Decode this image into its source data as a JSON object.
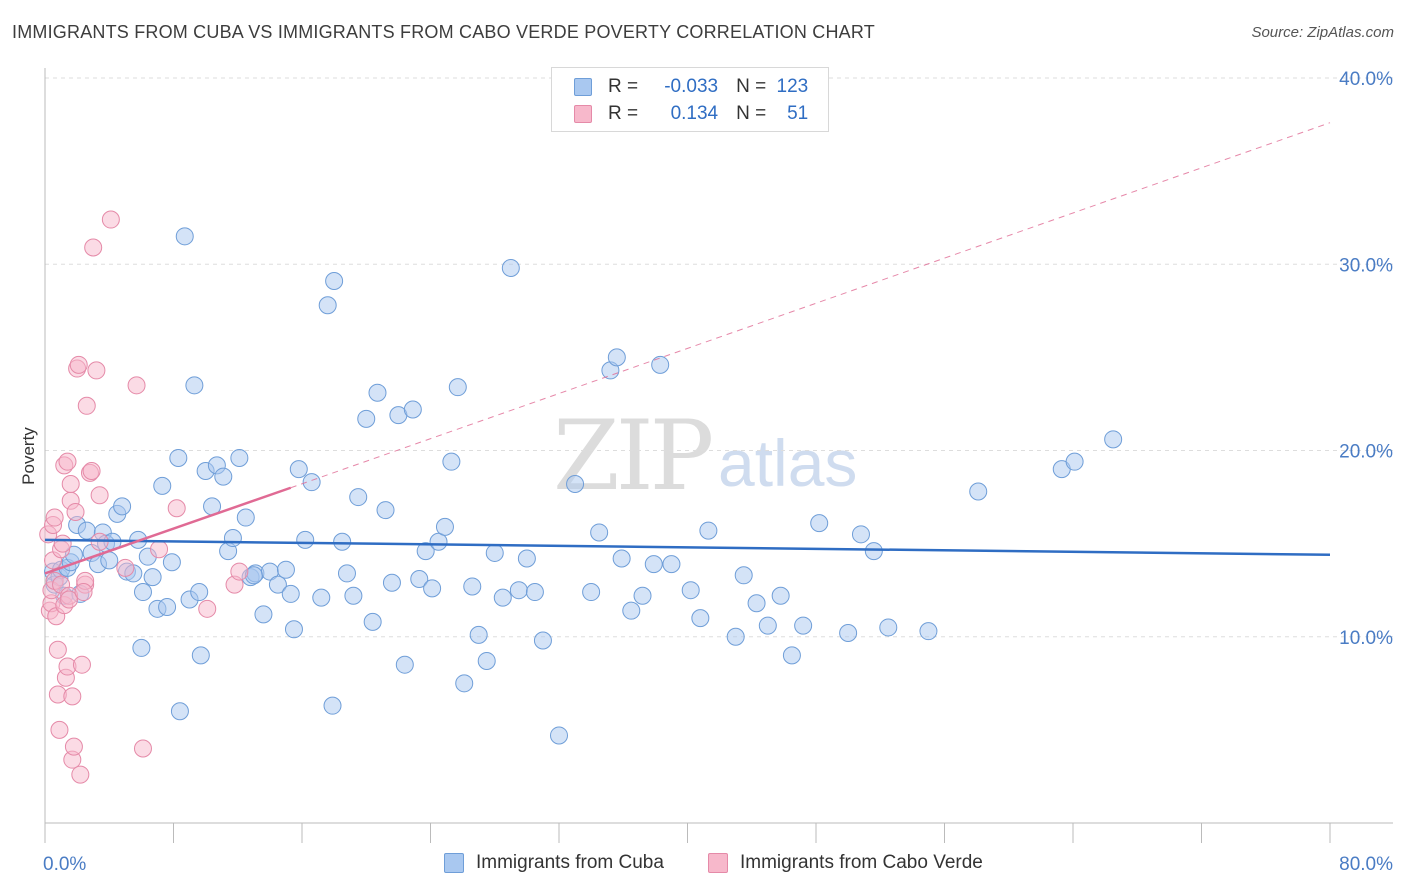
{
  "header": {
    "title": "IMMIGRANTS FROM CUBA VS IMMIGRANTS FROM CABO VERDE POVERTY CORRELATION CHART",
    "source": "Source: ZipAtlas.com"
  },
  "watermark": {
    "zip": "ZIP",
    "atlas": "atlas"
  },
  "legend": {
    "rows": [
      {
        "r_label": "R =",
        "r_value": "-0.033",
        "n_label": "N =",
        "n_value": "123",
        "color": "#a9c8f0"
      },
      {
        "r_label": "R =",
        "r_value": "0.134",
        "n_label": "N =",
        "n_value": "51",
        "color": "#f7b8cb"
      }
    ]
  },
  "bottom_legend": {
    "series1": "Immigrants from Cuba",
    "series2": "Immigrants from Cabo Verde"
  },
  "colors": {
    "cuba_fill": "#a9c8f0",
    "cuba_stroke": "#6f9ed8",
    "cuba_line": "#2f6dc3",
    "cabo_fill": "#f7b8cb",
    "cabo_stroke": "#e58aa8",
    "cabo_line": "#e06a94"
  },
  "chart_data": {
    "type": "scatter",
    "title": "IMMIGRANTS FROM CUBA VS IMMIGRANTS FROM CABO VERDE POVERTY CORRELATION CHART",
    "xlabel": "",
    "ylabel": "Poverty",
    "xlim": [
      0,
      80
    ],
    "ylim": [
      0,
      40
    ],
    "x_tick_labels": [
      "0.0%",
      "80.0%"
    ],
    "y_ticks": [
      10,
      20,
      30,
      40
    ],
    "y_tick_labels": [
      "10.0%",
      "20.0%",
      "30.0%",
      "40.0%"
    ],
    "series": [
      {
        "name": "Immigrants from Cuba",
        "trend": {
          "x0": 0,
          "y0": 15.2,
          "x1": 80,
          "y1": 14.4
        },
        "points": [
          [
            0.5,
            13.5
          ],
          [
            0.6,
            12.8
          ],
          [
            0.9,
            13.2
          ],
          [
            1.0,
            13.6
          ],
          [
            1.2,
            12.2
          ],
          [
            1.4,
            13.7
          ],
          [
            1.6,
            14.0
          ],
          [
            1.8,
            14.4
          ],
          [
            2.0,
            16.0
          ],
          [
            2.2,
            12.3
          ],
          [
            2.6,
            15.7
          ],
          [
            2.9,
            14.5
          ],
          [
            3.3,
            13.9
          ],
          [
            3.6,
            15.6
          ],
          [
            3.8,
            15.0
          ],
          [
            4.0,
            14.1
          ],
          [
            4.5,
            16.6
          ],
          [
            4.8,
            17.0
          ],
          [
            5.1,
            13.5
          ],
          [
            5.5,
            13.4
          ],
          [
            5.8,
            15.2
          ],
          [
            6.1,
            12.4
          ],
          [
            6.4,
            14.3
          ],
          [
            6.7,
            13.2
          ],
          [
            7.0,
            11.5
          ],
          [
            7.3,
            18.1
          ],
          [
            7.6,
            11.6
          ],
          [
            7.9,
            14.0
          ],
          [
            8.3,
            19.6
          ],
          [
            8.7,
            31.5
          ],
          [
            9.0,
            12.0
          ],
          [
            9.3,
            23.5
          ],
          [
            9.6,
            12.4
          ],
          [
            10.0,
            18.9
          ],
          [
            10.4,
            17.0
          ],
          [
            10.7,
            19.2
          ],
          [
            11.1,
            18.6
          ],
          [
            11.4,
            14.6
          ],
          [
            11.7,
            15.3
          ],
          [
            12.1,
            19.6
          ],
          [
            12.5,
            16.4
          ],
          [
            12.8,
            13.2
          ],
          [
            13.1,
            13.4
          ],
          [
            13.6,
            11.2
          ],
          [
            14.0,
            13.5
          ],
          [
            14.5,
            12.8
          ],
          [
            15.0,
            13.6
          ],
          [
            15.3,
            12.3
          ],
          [
            15.8,
            19.0
          ],
          [
            16.2,
            15.2
          ],
          [
            16.6,
            18.3
          ],
          [
            17.2,
            12.1
          ],
          [
            17.6,
            27.8
          ],
          [
            18.0,
            29.1
          ],
          [
            18.5,
            15.1
          ],
          [
            18.8,
            13.4
          ],
          [
            19.2,
            12.2
          ],
          [
            19.5,
            17.5
          ],
          [
            20.0,
            21.7
          ],
          [
            20.4,
            10.8
          ],
          [
            20.7,
            23.1
          ],
          [
            21.2,
            16.8
          ],
          [
            21.6,
            12.9
          ],
          [
            22.0,
            21.9
          ],
          [
            22.4,
            8.5
          ],
          [
            22.9,
            22.2
          ],
          [
            23.3,
            13.1
          ],
          [
            23.7,
            14.6
          ],
          [
            24.1,
            12.6
          ],
          [
            24.5,
            15.1
          ],
          [
            24.9,
            15.9
          ],
          [
            25.3,
            19.4
          ],
          [
            25.7,
            23.4
          ],
          [
            26.1,
            7.5
          ],
          [
            26.6,
            12.7
          ],
          [
            27.0,
            10.1
          ],
          [
            27.5,
            8.7
          ],
          [
            28.0,
            14.5
          ],
          [
            28.5,
            12.1
          ],
          [
            29.0,
            29.8
          ],
          [
            29.5,
            12.5
          ],
          [
            30.0,
            14.2
          ],
          [
            30.5,
            12.4
          ],
          [
            31.0,
            9.8
          ],
          [
            32.0,
            4.7
          ],
          [
            33.0,
            18.2
          ],
          [
            34.0,
            12.4
          ],
          [
            34.5,
            15.6
          ],
          [
            35.2,
            24.3
          ],
          [
            35.6,
            25.0
          ],
          [
            35.9,
            14.2
          ],
          [
            36.5,
            11.4
          ],
          [
            37.2,
            12.2
          ],
          [
            37.9,
            13.9
          ],
          [
            38.3,
            24.6
          ],
          [
            39.0,
            13.9
          ],
          [
            40.2,
            12.5
          ],
          [
            40.8,
            11.0
          ],
          [
            41.3,
            15.7
          ],
          [
            43.0,
            10.0
          ],
          [
            43.5,
            13.3
          ],
          [
            44.3,
            11.8
          ],
          [
            45.0,
            10.6
          ],
          [
            45.8,
            12.2
          ],
          [
            46.5,
            9.0
          ],
          [
            47.2,
            10.6
          ],
          [
            48.2,
            16.1
          ],
          [
            50.0,
            10.2
          ],
          [
            50.8,
            15.5
          ],
          [
            51.6,
            14.6
          ],
          [
            52.5,
            10.5
          ],
          [
            55.0,
            10.3
          ],
          [
            58.1,
            17.8
          ],
          [
            63.3,
            19.0
          ],
          [
            64.1,
            19.4
          ],
          [
            66.5,
            20.6
          ],
          [
            13.0,
            13.3
          ],
          [
            4.2,
            15.1
          ],
          [
            9.7,
            9.0
          ],
          [
            8.4,
            6.0
          ],
          [
            6.0,
            9.4
          ],
          [
            15.5,
            10.4
          ],
          [
            17.9,
            6.3
          ]
        ]
      },
      {
        "name": "Immigrants from Cabo Verde",
        "trend": {
          "x0": 0,
          "y0": 13.4,
          "x1": 15.3,
          "y1": 18.0,
          "dash_x1": 80,
          "dash_y1": 37.6
        },
        "points": [
          [
            0.2,
            15.5
          ],
          [
            0.3,
            11.4
          ],
          [
            0.4,
            11.8
          ],
          [
            0.4,
            12.5
          ],
          [
            0.5,
            14.1
          ],
          [
            0.5,
            16.0
          ],
          [
            0.6,
            16.4
          ],
          [
            0.6,
            13.0
          ],
          [
            0.7,
            11.1
          ],
          [
            0.8,
            6.9
          ],
          [
            0.8,
            9.3
          ],
          [
            0.9,
            5.0
          ],
          [
            1.0,
            12.8
          ],
          [
            1.0,
            14.7
          ],
          [
            1.1,
            15.0
          ],
          [
            1.2,
            11.7
          ],
          [
            1.2,
            19.2
          ],
          [
            1.3,
            7.8
          ],
          [
            1.4,
            8.4
          ],
          [
            1.4,
            19.4
          ],
          [
            1.5,
            12.2
          ],
          [
            1.6,
            17.3
          ],
          [
            1.6,
            18.2
          ],
          [
            1.7,
            6.8
          ],
          [
            1.7,
            3.4
          ],
          [
            1.8,
            4.1
          ],
          [
            1.9,
            16.7
          ],
          [
            2.0,
            24.4
          ],
          [
            2.1,
            24.6
          ],
          [
            2.2,
            2.6
          ],
          [
            2.3,
            8.5
          ],
          [
            2.5,
            12.8
          ],
          [
            2.5,
            13.0
          ],
          [
            2.6,
            22.4
          ],
          [
            2.8,
            18.8
          ],
          [
            2.9,
            18.9
          ],
          [
            3.0,
            30.9
          ],
          [
            3.2,
            24.3
          ],
          [
            3.4,
            15.1
          ],
          [
            3.4,
            17.6
          ],
          [
            4.1,
            32.4
          ],
          [
            5.0,
            13.7
          ],
          [
            5.7,
            23.5
          ],
          [
            6.1,
            4.0
          ],
          [
            7.1,
            14.7
          ],
          [
            8.2,
            16.9
          ],
          [
            10.1,
            11.5
          ],
          [
            11.8,
            12.8
          ],
          [
            12.1,
            13.5
          ],
          [
            1.5,
            12.0
          ],
          [
            2.4,
            12.4
          ]
        ]
      }
    ]
  }
}
